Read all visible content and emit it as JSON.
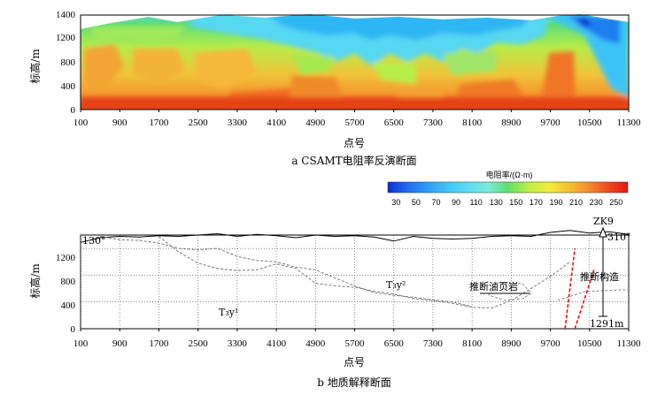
{
  "top_panel": {
    "y_axis_label": "标高/m",
    "x_axis_label": "点号",
    "caption": "a  CSAMT电阻率反演断面",
    "colorbar": {
      "title": "电阻率/(Ω·m)",
      "ticks": [
        "30",
        "50",
        "70",
        "90",
        "110",
        "130",
        "150",
        "170",
        "190",
        "210",
        "230",
        "250"
      ],
      "colors": [
        "#0a2ed6",
        "#1f6cf0",
        "#2f9ff5",
        "#42c4f7",
        "#5bdcf5",
        "#78ecd8",
        "#5fe06a",
        "#b7ef4a",
        "#f2ee3c",
        "#f7c331",
        "#f39231",
        "#ee4b1f",
        "#e21414"
      ]
    }
  },
  "bottom_panel": {
    "y_axis_label": "标高/m",
    "x_axis_label": "点号",
    "caption": "b  地质解释断面",
    "annotations": {
      "azimuth_left": "130°",
      "azimuth_right": "310°",
      "borehole": "ZK9",
      "borehole_depth": "1291m",
      "unit_upper": "T₃y²",
      "unit_lower": "T₃y¹",
      "shale_label": "推断油页岩",
      "structure_label": "推断构造"
    }
  },
  "chart_data": [
    {
      "type": "heatmap",
      "title": "CSAMT电阻率反演断面",
      "xlabel": "点号",
      "ylabel": "标高/m",
      "x_ticks": [
        "100",
        "900",
        "1700",
        "2500",
        "3300",
        "4100",
        "4900",
        "5700",
        "6500",
        "7300",
        "8100",
        "8900",
        "9700",
        "10500",
        "11300"
      ],
      "y_ticks": [
        "0",
        "400",
        "800",
        "1200",
        "1400"
      ],
      "xlim": [
        100,
        11300
      ],
      "ylim": [
        0,
        1400
      ],
      "colorbar_label": "电阻率/(Ω·m)",
      "colorbar_range": [
        30,
        250
      ]
    },
    {
      "type": "line",
      "title": "地质解释断面",
      "xlabel": "点号",
      "ylabel": "标高/m",
      "x_ticks": [
        "100",
        "900",
        "1700",
        "2500",
        "3300",
        "4100",
        "4900",
        "5700",
        "6500",
        "7300",
        "8100",
        "8900",
        "9700",
        "10500",
        "11300"
      ],
      "y_ticks": [
        "0",
        "400",
        "800",
        "1200"
      ],
      "xlim": [
        100,
        11300
      ],
      "ylim": [
        0,
        1400
      ],
      "series": [
        {
          "x": [
            100,
            500,
            900,
            1300,
            1700,
            2100,
            2500,
            2900,
            3300,
            3700,
            4100,
            4500,
            4900,
            5300,
            5700,
            6100,
            6500,
            6900,
            7300,
            7700,
            8100,
            8500,
            8900,
            9300,
            9700,
            10100,
            10500,
            10900,
            11300
          ],
          "values": [
            1290,
            1360,
            1380,
            1370,
            1390,
            1380,
            1400,
            1420,
            1380,
            1410,
            1390,
            1360,
            1400,
            1380,
            1390,
            1370,
            1310,
            1380,
            1350,
            1340,
            1350,
            1380,
            1390,
            1380,
            1440,
            1470,
            1430,
            1450,
            1410
          ]
        },
        {
          "x": [
            1700,
            2100,
            2500,
            2900,
            3300,
            3700,
            4100,
            4500,
            4900,
            5300,
            5700,
            6100,
            6500,
            6900,
            7300,
            7700,
            8100,
            8500,
            8900,
            9300,
            9700,
            10100
          ],
          "values": [
            1380,
            1150,
            980,
            900,
            870,
            880,
            970,
            900,
            680,
            640,
            620,
            560,
            520,
            450,
            420,
            380,
            320,
            310,
            420,
            600,
            780,
            1000
          ]
        },
        {
          "x": [
            500,
            900,
            1300,
            1700,
            2100,
            2500,
            2900,
            3300,
            3700,
            4100,
            4500,
            4900,
            5300,
            5700,
            6100,
            6500,
            6900,
            7300,
            7700,
            8100
          ],
          "values": [
            1380,
            1330,
            1320,
            1280,
            1200,
            1180,
            1200,
            1080,
            1020,
            1000,
            920,
            880,
            760,
            640,
            540,
            500,
            470,
            430,
            400,
            330
          ]
        },
        {
          "x": [
            10000,
            10200
          ],
          "values": [
            0,
            1200
          ]
        },
        {
          "x": [
            10200,
            10600
          ],
          "values": [
            0,
            900
          ]
        }
      ]
    }
  ]
}
